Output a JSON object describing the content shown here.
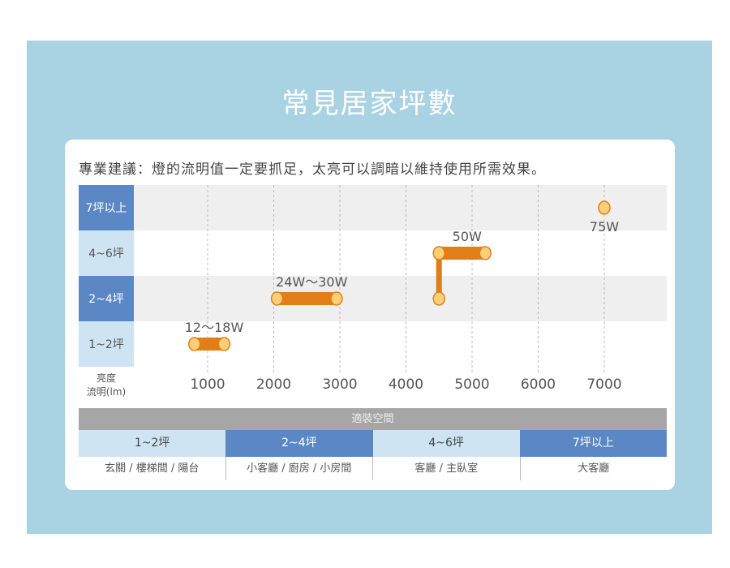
{
  "title": "常見居家坪數",
  "advice": "專業建議：燈的流明值一定要抓足，太亮可以調暗以維持使用所需效果。",
  "colors": {
    "background": "#a9d2e3",
    "dark_blue": "#5b88c5",
    "light_blue": "#cfe4f3",
    "bar": "#e27e17",
    "dot": "#fbcf78"
  },
  "chart_data": {
    "type": "range-bar",
    "ylabel": "亮度\n流明(lm)",
    "ylabel_lines": [
      "亮度",
      "流明(lm)"
    ],
    "rows": [
      "7坪以上",
      "4~6坪",
      "2~4坪",
      "1~2坪"
    ],
    "xticks": [
      "1000",
      "2000",
      "3000",
      "4000",
      "5000",
      "6000",
      "7000"
    ],
    "xlim": [
      0,
      7900
    ],
    "grid": true,
    "series": [
      {
        "row": "1~2坪",
        "label": "12～18W",
        "from": 800,
        "to": 1250
      },
      {
        "row": "2~4坪",
        "label": "24W～30W",
        "from": 2050,
        "to": 2950
      },
      {
        "row": "4~6坪",
        "label": "50W",
        "from": 4500,
        "to": 5200,
        "connector_from_row": "2~4坪"
      },
      {
        "row": "7坪以上",
        "label": "75W",
        "from": 7000,
        "to": 7000
      }
    ]
  },
  "table": {
    "header": "適裝空間",
    "sizes": [
      "1~2坪",
      "2~4坪",
      "4~6坪",
      "7坪以上"
    ],
    "rooms": [
      "玄關 / 樓梯間 / 陽台",
      "小客廳 / 廚房 / 小房間",
      "客廳 / 主臥室",
      "大客廳"
    ]
  }
}
